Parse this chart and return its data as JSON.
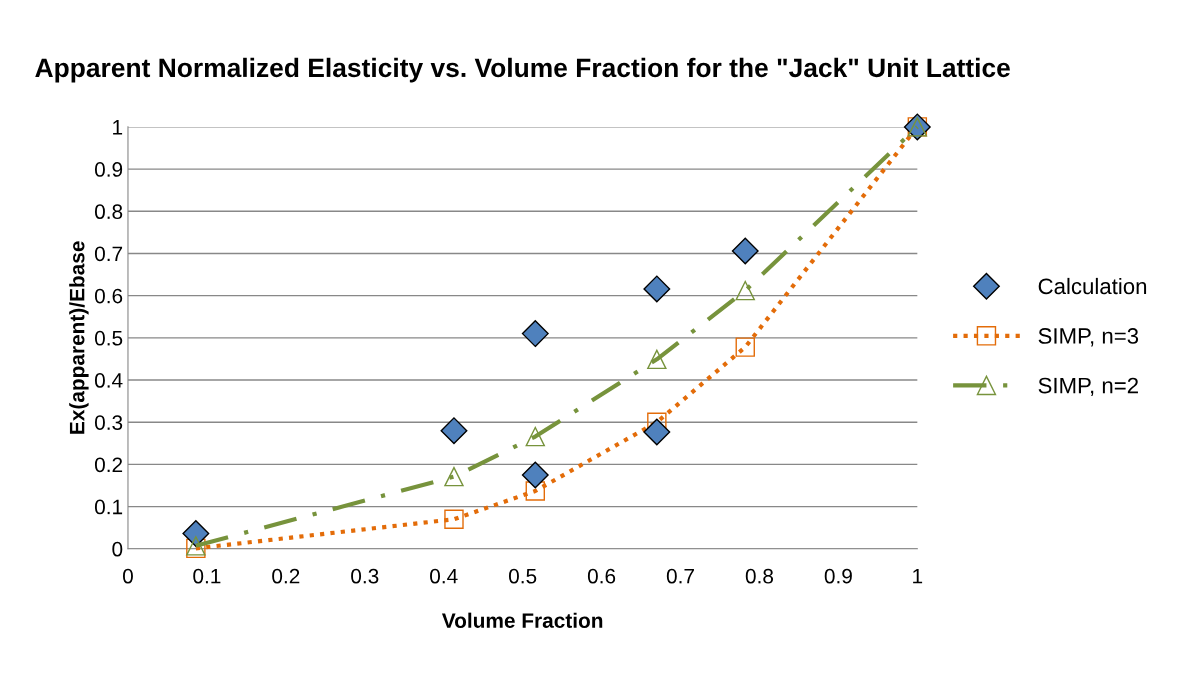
{
  "chart_data": {
    "type": "scatter",
    "title": "Apparent Normalized Elasticity vs. Volume Fraction for the \"Jack\" Unit Lattice",
    "xlabel": "Volume Fraction",
    "ylabel": "Ex(apparent)/Ebase",
    "xlim": [
      0,
      1
    ],
    "xticks": [
      0,
      0.1,
      0.2,
      0.3,
      0.4,
      0.5,
      0.6,
      0.7,
      0.8,
      0.9,
      1
    ],
    "ylim": [
      0,
      1
    ],
    "yticks": [
      0,
      0.1,
      0.2,
      0.3,
      0.4,
      0.5,
      0.6,
      0.7,
      0.8,
      0.9,
      1
    ],
    "grid": "y",
    "legend": "right",
    "series": [
      {
        "name": "Calculation",
        "marker": "diamond",
        "color": "#4f81bd",
        "x": [
          0.086,
          0.413,
          0.516,
          0.516,
          0.67,
          0.67,
          0.782,
          1
        ],
        "values": [
          0.036,
          0.28,
          0.51,
          0.175,
          0.616,
          0.277,
          0.706,
          1
        ]
      },
      {
        "name": "SIMP, n=3",
        "type": "line",
        "marker": "square",
        "line_style": "dotted",
        "color": "#e36c09",
        "x": [
          0.086,
          0.413,
          0.516,
          0.67,
          0.782,
          1
        ],
        "values": [
          0.001,
          0.07,
          0.137,
          0.3,
          0.478,
          1
        ]
      },
      {
        "name": "SIMP, n=2",
        "type": "line",
        "marker": "triangle",
        "line_style": "dashed",
        "color": "#77933c",
        "x": [
          0.086,
          0.413,
          0.516,
          0.67,
          0.782,
          1
        ],
        "values": [
          0.007,
          0.171,
          0.266,
          0.449,
          0.612,
          1
        ]
      }
    ]
  }
}
